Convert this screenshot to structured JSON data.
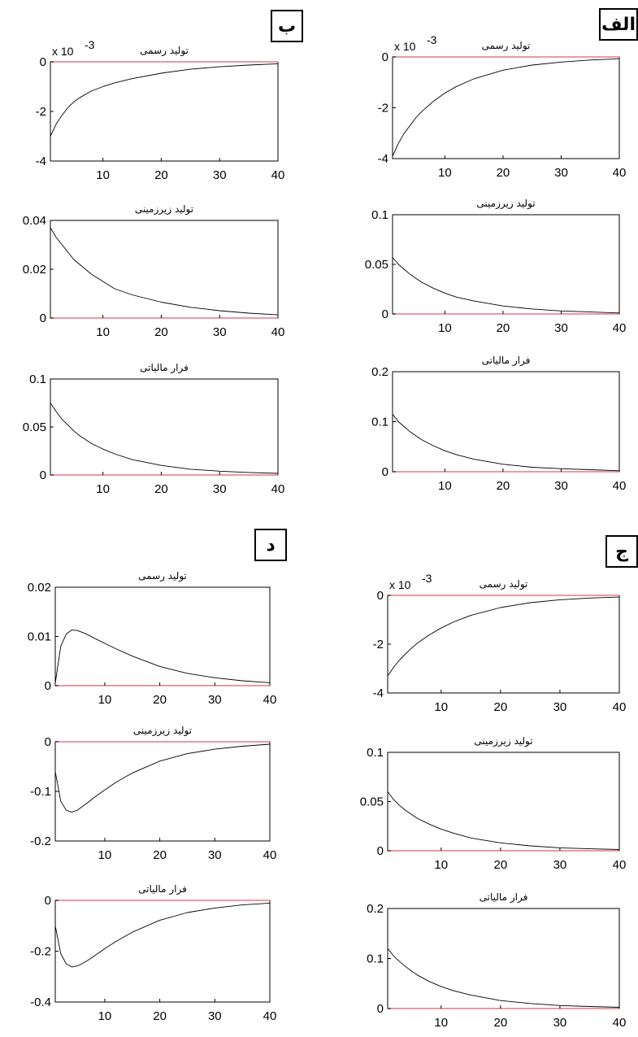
{
  "panel_labels": {
    "alef": "الف",
    "be": "ب",
    "jim": "ج",
    "dal": "د"
  },
  "colors": {
    "curve": "#000000",
    "zero_line": "#e07a8a",
    "frame": "#000000"
  },
  "chart_data": [
    {
      "type": "line",
      "panel": "الف",
      "title": "تولید رسمی",
      "scale_text": "x 10",
      "scale_exp": "-3",
      "xlim": [
        1,
        40
      ],
      "ylim": [
        -4,
        0
      ],
      "xticks": [
        10,
        20,
        30,
        40
      ],
      "yticks": [
        0,
        -2,
        -4
      ],
      "x": [
        1,
        2,
        3,
        4,
        5,
        6,
        8,
        10,
        12,
        15,
        20,
        25,
        30,
        35,
        40
      ],
      "series": [
        {
          "values": [
            -3.9,
            -3.4,
            -3.0,
            -2.7,
            -2.4,
            -2.15,
            -1.75,
            -1.42,
            -1.16,
            -0.86,
            -0.52,
            -0.32,
            -0.2,
            -0.12,
            -0.07
          ]
        }
      ]
    },
    {
      "type": "line",
      "panel": "الف",
      "title": "تولید زیرزمینی",
      "xlim": [
        1,
        40
      ],
      "ylim": [
        0,
        0.1
      ],
      "xticks": [
        10,
        20,
        30,
        40
      ],
      "yticks": [
        0.1,
        0.05,
        0
      ],
      "x": [
        1,
        2,
        3,
        4,
        5,
        6,
        8,
        10,
        12,
        15,
        20,
        25,
        30,
        35,
        40
      ],
      "series": [
        {
          "values": [
            0.057,
            0.05,
            0.045,
            0.04,
            0.036,
            0.032,
            0.026,
            0.021,
            0.017,
            0.013,
            0.008,
            0.005,
            0.003,
            0.002,
            0.001
          ]
        }
      ]
    },
    {
      "type": "line",
      "panel": "الف",
      "title": "فرار مالیاتی",
      "xlim": [
        1,
        40
      ],
      "ylim": [
        0,
        0.2
      ],
      "xticks": [
        10,
        20,
        30,
        40
      ],
      "yticks": [
        0.2,
        0.1,
        0
      ],
      "x": [
        1,
        2,
        3,
        4,
        5,
        6,
        8,
        10,
        12,
        15,
        20,
        25,
        30,
        35,
        40
      ],
      "series": [
        {
          "values": [
            0.115,
            0.1,
            0.09,
            0.08,
            0.072,
            0.064,
            0.052,
            0.042,
            0.034,
            0.025,
            0.015,
            0.009,
            0.006,
            0.004,
            0.002
          ]
        }
      ]
    },
    {
      "type": "line",
      "panel": "ب",
      "title": "تولید رسمی",
      "scale_text": "x 10",
      "scale_exp": "-3",
      "xlim": [
        1,
        40
      ],
      "ylim": [
        -4,
        0
      ],
      "xticks": [
        10,
        20,
        30,
        40
      ],
      "yticks": [
        0,
        -2,
        -4
      ],
      "x": [
        1,
        2,
        3,
        4,
        5,
        6,
        8,
        10,
        12,
        15,
        20,
        25,
        30,
        35,
        40
      ],
      "series": [
        {
          "values": [
            -3.0,
            -2.5,
            -2.15,
            -1.85,
            -1.62,
            -1.45,
            -1.18,
            -1.0,
            -0.85,
            -0.68,
            -0.46,
            -0.3,
            -0.2,
            -0.13,
            -0.08
          ]
        }
      ]
    },
    {
      "type": "line",
      "panel": "ب",
      "title": "تولید زیرزمینی",
      "xlim": [
        1,
        40
      ],
      "ylim": [
        0,
        0.04
      ],
      "xticks": [
        10,
        20,
        30,
        40
      ],
      "yticks": [
        0.04,
        0.02,
        0
      ],
      "x": [
        1,
        2,
        3,
        4,
        5,
        6,
        8,
        10,
        12,
        15,
        20,
        25,
        30,
        35,
        40
      ],
      "series": [
        {
          "values": [
            0.037,
            0.033,
            0.03,
            0.027,
            0.024,
            0.022,
            0.018,
            0.015,
            0.012,
            0.0095,
            0.0065,
            0.0044,
            0.003,
            0.002,
            0.0013
          ]
        }
      ]
    },
    {
      "type": "line",
      "panel": "ب",
      "title": "فرار مالیاتی",
      "xlim": [
        1,
        40
      ],
      "ylim": [
        0,
        0.1
      ],
      "xticks": [
        10,
        20,
        30,
        40
      ],
      "yticks": [
        0.1,
        0.05,
        0
      ],
      "x": [
        1,
        2,
        3,
        4,
        5,
        6,
        8,
        10,
        12,
        15,
        20,
        25,
        30,
        35,
        40
      ],
      "series": [
        {
          "values": [
            0.075,
            0.066,
            0.058,
            0.052,
            0.046,
            0.041,
            0.033,
            0.027,
            0.022,
            0.016,
            0.01,
            0.006,
            0.004,
            0.0026,
            0.0017
          ]
        }
      ]
    },
    {
      "type": "line",
      "panel": "ج",
      "title": "تولید رسمی",
      "scale_text": "x 10",
      "scale_exp": "-3",
      "xlim": [
        1,
        40
      ],
      "ylim": [
        -4,
        0
      ],
      "xticks": [
        10,
        20,
        30,
        40
      ],
      "yticks": [
        0,
        -2,
        -4
      ],
      "x": [
        1,
        2,
        3,
        4,
        5,
        6,
        8,
        10,
        12,
        15,
        20,
        25,
        30,
        35,
        40
      ],
      "series": [
        {
          "values": [
            -3.3,
            -2.95,
            -2.65,
            -2.4,
            -2.17,
            -1.96,
            -1.62,
            -1.34,
            -1.1,
            -0.82,
            -0.5,
            -0.3,
            -0.18,
            -0.11,
            -0.07
          ]
        }
      ]
    },
    {
      "type": "line",
      "panel": "ج",
      "title": "تولید زیرزمینی",
      "xlim": [
        1,
        40
      ],
      "ylim": [
        0,
        0.1
      ],
      "xticks": [
        10,
        20,
        30,
        40
      ],
      "yticks": [
        0.1,
        0.05,
        0
      ],
      "x": [
        1,
        2,
        3,
        4,
        5,
        6,
        8,
        10,
        12,
        15,
        20,
        25,
        30,
        35,
        40
      ],
      "series": [
        {
          "values": [
            0.06,
            0.052,
            0.046,
            0.041,
            0.037,
            0.033,
            0.027,
            0.022,
            0.018,
            0.013,
            0.008,
            0.005,
            0.003,
            0.002,
            0.0012
          ]
        }
      ]
    },
    {
      "type": "line",
      "panel": "ج",
      "title": "فرار مالیاتی",
      "xlim": [
        1,
        40
      ],
      "ylim": [
        0,
        0.2
      ],
      "xticks": [
        10,
        20,
        30,
        40
      ],
      "yticks": [
        0.2,
        0.1,
        0
      ],
      "x": [
        1,
        2,
        3,
        4,
        5,
        6,
        8,
        10,
        12,
        15,
        20,
        25,
        30,
        35,
        40
      ],
      "series": [
        {
          "values": [
            0.12,
            0.105,
            0.094,
            0.084,
            0.075,
            0.067,
            0.054,
            0.044,
            0.036,
            0.027,
            0.016,
            0.01,
            0.006,
            0.004,
            0.0025
          ]
        }
      ]
    },
    {
      "type": "line",
      "panel": "د",
      "title": "تولید رسمی",
      "xlim": [
        1,
        40
      ],
      "ylim": [
        0,
        0.02
      ],
      "xticks": [
        10,
        20,
        30,
        40
      ],
      "yticks": [
        0.02,
        0.01,
        0
      ],
      "x": [
        1,
        2,
        3,
        4,
        5,
        6,
        7,
        8,
        10,
        12,
        15,
        20,
        25,
        30,
        35,
        40
      ],
      "series": [
        {
          "values": [
            0.0005,
            0.008,
            0.0105,
            0.0113,
            0.0112,
            0.0108,
            0.0103,
            0.0097,
            0.0086,
            0.0075,
            0.006,
            0.0039,
            0.0025,
            0.0016,
            0.001,
            0.0006
          ]
        }
      ]
    },
    {
      "type": "line",
      "panel": "د",
      "title": "تولید زیرزمینی",
      "xlim": [
        1,
        40
      ],
      "ylim": [
        -0.2,
        0
      ],
      "xticks": [
        10,
        20,
        30,
        40
      ],
      "yticks": [
        0,
        -0.1,
        -0.2
      ],
      "x": [
        1,
        2,
        3,
        4,
        5,
        6,
        7,
        8,
        10,
        12,
        15,
        20,
        25,
        30,
        35,
        40
      ],
      "series": [
        {
          "values": [
            -0.06,
            -0.12,
            -0.138,
            -0.142,
            -0.138,
            -0.13,
            -0.122,
            -0.113,
            -0.097,
            -0.082,
            -0.063,
            -0.039,
            -0.024,
            -0.015,
            -0.009,
            -0.005
          ]
        }
      ]
    },
    {
      "type": "line",
      "panel": "د",
      "title": "فرار مالیاتی",
      "xlim": [
        1,
        40
      ],
      "ylim": [
        -0.4,
        0
      ],
      "xticks": [
        10,
        20,
        30,
        40
      ],
      "yticks": [
        0,
        -0.2,
        -0.4
      ],
      "x": [
        1,
        2,
        3,
        4,
        5,
        6,
        7,
        8,
        10,
        12,
        15,
        20,
        25,
        30,
        35,
        40
      ],
      "series": [
        {
          "values": [
            -0.1,
            -0.21,
            -0.25,
            -0.262,
            -0.258,
            -0.248,
            -0.235,
            -0.22,
            -0.19,
            -0.162,
            -0.125,
            -0.078,
            -0.048,
            -0.03,
            -0.018,
            -0.011
          ]
        }
      ]
    }
  ]
}
